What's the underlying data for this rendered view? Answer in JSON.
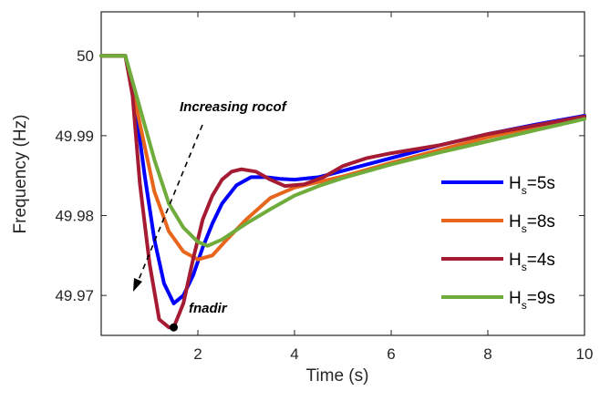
{
  "chart_data": {
    "type": "line",
    "xlabel": "Time (s)",
    "ylabel": "Frequency (Hz)",
    "xlim": [
      0,
      10
    ],
    "ylim": [
      49.965,
      50.0055
    ],
    "xticks": [
      2,
      4,
      6,
      8,
      10
    ],
    "yticks": [
      49.97,
      49.98,
      49.99,
      50
    ],
    "ytick_labels": [
      "49.97",
      "49.98",
      "49.99",
      "50"
    ],
    "grid": false,
    "legend_position": "right",
    "series": [
      {
        "name": "H_s=5s",
        "legend_main": "H",
        "legend_sub": "s",
        "legend_tail": "=5s",
        "color": "#0000ff",
        "x": [
          0,
          0.5,
          0.7,
          0.9,
          1.1,
          1.3,
          1.5,
          1.7,
          1.9,
          2.1,
          2.3,
          2.5,
          2.8,
          3.1,
          3.4,
          3.7,
          4.0,
          4.5,
          5.0,
          6.0,
          7.0,
          8.0,
          9.0,
          10.0
        ],
        "y": [
          50.0,
          50.0,
          49.994,
          49.985,
          49.977,
          49.9715,
          49.969,
          49.97,
          49.9725,
          49.976,
          49.979,
          49.9815,
          49.9838,
          49.9848,
          49.9848,
          49.9846,
          49.9845,
          49.9848,
          49.9856,
          49.9872,
          49.9888,
          49.9902,
          49.9914,
          49.9925
        ]
      },
      {
        "name": "H_s=8s",
        "legend_main": "H",
        "legend_sub": "s",
        "legend_tail": "=8s",
        "color": "#e8651c",
        "x": [
          0,
          0.5,
          0.8,
          1.1,
          1.4,
          1.7,
          2.0,
          2.3,
          2.6,
          3.0,
          3.5,
          4.0,
          4.5,
          5.0,
          6.0,
          7.0,
          8.0,
          9.0,
          10.0
        ],
        "y": [
          50.0,
          50.0,
          49.9915,
          49.983,
          49.978,
          49.9755,
          49.9745,
          49.975,
          49.977,
          49.9795,
          49.9822,
          49.9835,
          49.9842,
          49.9849,
          49.9866,
          49.9882,
          49.9898,
          49.9911,
          49.9923
        ]
      },
      {
        "name": "H_s=4s",
        "legend_main": "H",
        "legend_sub": "s",
        "legend_tail": "=4s",
        "color": "#a51b33",
        "x": [
          0,
          0.5,
          0.65,
          0.8,
          1.0,
          1.2,
          1.4,
          1.5,
          1.7,
          1.9,
          2.1,
          2.3,
          2.5,
          2.7,
          2.9,
          3.2,
          3.5,
          3.8,
          4.2,
          4.6,
          5.0,
          5.5,
          6.0,
          7.0,
          8.0,
          9.0,
          10.0
        ],
        "y": [
          50.0,
          50.0,
          49.995,
          49.984,
          49.974,
          49.967,
          49.966,
          49.966,
          49.969,
          49.9745,
          49.9795,
          49.9825,
          49.9845,
          49.9855,
          49.9858,
          49.9855,
          49.9845,
          49.9837,
          49.9839,
          49.9848,
          49.9862,
          49.9872,
          49.9878,
          49.9888,
          49.9902,
          49.9913,
          49.9924
        ]
      },
      {
        "name": "H_s=9s",
        "legend_main": "H",
        "legend_sub": "s",
        "legend_tail": "=9s",
        "color": "#6fac3c",
        "x": [
          0,
          0.5,
          0.8,
          1.1,
          1.4,
          1.7,
          2.0,
          2.2,
          2.5,
          3.0,
          3.5,
          4.0,
          4.5,
          5.0,
          6.0,
          7.0,
          8.0,
          9.0,
          10.0
        ],
        "y": [
          50.0,
          50.0,
          49.9935,
          49.987,
          49.9815,
          49.9785,
          49.9767,
          49.9762,
          49.977,
          49.979,
          49.9808,
          49.9825,
          49.9837,
          49.9847,
          49.9864,
          49.9879,
          49.9893,
          49.9907,
          49.9921
        ]
      }
    ],
    "annotations": [
      {
        "text": "Increasing rocof"
      },
      {
        "text": "fnadir"
      }
    ],
    "marker": {
      "label": "fnadir",
      "x": 1.5,
      "y": 49.966
    }
  }
}
